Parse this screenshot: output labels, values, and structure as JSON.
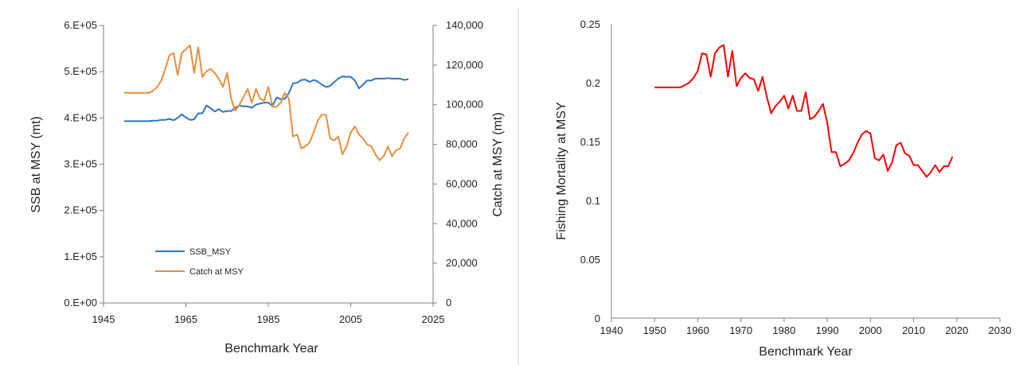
{
  "chart_data": [
    {
      "type": "line",
      "xlabel": "Benchmark Year",
      "ylabel": "SSB at MSY (mt)",
      "y2label": "Catch at MSY (mt)",
      "xlim": [
        1945,
        2025
      ],
      "ylim": [
        0,
        600000
      ],
      "y2lim": [
        0,
        140000
      ],
      "x_ticks": [
        "1945",
        "1965",
        "1985",
        "2005",
        "2025"
      ],
      "y_ticks": [
        "0.E+00",
        "1.E+05",
        "2.E+05",
        "3.E+05",
        "4.E+05",
        "5.E+05",
        "6.E+05"
      ],
      "y2_ticks": [
        "0",
        "20,000",
        "40,000",
        "60,000",
        "80,000",
        "100,000",
        "120,000",
        "140,000"
      ],
      "legend": "center-left",
      "series": [
        {
          "name": "SSB_MSY",
          "axis": "left",
          "color": "#2e75c3",
          "x": [
            1950,
            1951,
            1952,
            1953,
            1954,
            1955,
            1956,
            1957,
            1958,
            1959,
            1960,
            1961,
            1962,
            1963,
            1964,
            1965,
            1966,
            1967,
            1968,
            1969,
            1970,
            1971,
            1972,
            1973,
            1974,
            1975,
            1976,
            1977,
            1978,
            1979,
            1980,
            1981,
            1982,
            1983,
            1984,
            1985,
            1986,
            1987,
            1988,
            1989,
            1990,
            1991,
            1992,
            1993,
            1994,
            1995,
            1996,
            1997,
            1998,
            1999,
            2000,
            2001,
            2002,
            2003,
            2004,
            2005,
            2006,
            2007,
            2008,
            2009,
            2010,
            2011,
            2012,
            2013,
            2014,
            2015,
            2016,
            2017,
            2018,
            2019
          ],
          "values": [
            393000,
            393000,
            393000,
            393000,
            393000,
            393000,
            393000,
            394000,
            394000,
            396000,
            396000,
            398000,
            395000,
            400000,
            408000,
            401000,
            396000,
            397000,
            410000,
            410000,
            427000,
            421000,
            414000,
            419000,
            413000,
            415000,
            415000,
            422000,
            427000,
            425000,
            425000,
            422000,
            429000,
            431000,
            433000,
            433000,
            426000,
            444000,
            441000,
            441000,
            454000,
            475000,
            476000,
            482000,
            483000,
            478000,
            482000,
            479000,
            472000,
            467000,
            469000,
            478000,
            485000,
            490000,
            489000,
            489000,
            481000,
            464000,
            472000,
            481000,
            481000,
            485000,
            485000,
            485000,
            486000,
            485000,
            485000,
            485000,
            482000,
            484000
          ]
        },
        {
          "name": "Catch at MSY",
          "axis": "right",
          "color": "#ed8c3c",
          "x": [
            1950,
            1951,
            1952,
            1953,
            1954,
            1955,
            1956,
            1957,
            1958,
            1959,
            1960,
            1961,
            1962,
            1963,
            1964,
            1965,
            1966,
            1967,
            1968,
            1969,
            1970,
            1971,
            1972,
            1973,
            1974,
            1975,
            1976,
            1977,
            1978,
            1979,
            1980,
            1981,
            1982,
            1983,
            1984,
            1985,
            1986,
            1987,
            1988,
            1989,
            1990,
            1991,
            1992,
            1993,
            1994,
            1995,
            1996,
            1997,
            1998,
            1999,
            2000,
            2001,
            2002,
            2003,
            2004,
            2005,
            2006,
            2007,
            2008,
            2009,
            2010,
            2011,
            2012,
            2013,
            2014,
            2015,
            2016,
            2017,
            2018,
            2019
          ],
          "values": [
            106000,
            106000,
            106000,
            106000,
            106000,
            106000,
            106000,
            107000,
            109000,
            112000,
            118000,
            125000,
            126000,
            115000,
            126000,
            128000,
            130000,
            116000,
            129000,
            114000,
            117000,
            118000,
            116000,
            113000,
            109000,
            116000,
            103000,
            97000,
            100000,
            104000,
            108000,
            101000,
            108000,
            103000,
            102000,
            109000,
            99000,
            99000,
            101000,
            106000,
            103000,
            84000,
            85000,
            78000,
            79000,
            81000,
            86000,
            92000,
            95000,
            95000,
            83000,
            82000,
            84000,
            75000,
            79000,
            86000,
            89000,
            85000,
            83000,
            80000,
            79000,
            75000,
            72000,
            74000,
            79000,
            74000,
            77000,
            78000,
            83000,
            86000
          ]
        }
      ]
    },
    {
      "type": "line",
      "xlabel": "Benchmark Year",
      "ylabel": "Fishing Mortality at MSY",
      "xlim": [
        1940,
        2030
      ],
      "ylim": [
        0,
        0.25
      ],
      "x_ticks": [
        "1940",
        "1950",
        "1960",
        "1970",
        "1980",
        "1990",
        "2000",
        "2010",
        "2020",
        "2030"
      ],
      "y_ticks": [
        "0",
        "0.05",
        "0.1",
        "0.15",
        "0.2",
        "0.25"
      ],
      "series": [
        {
          "color": "#ff0000",
          "x": [
            1950,
            1951,
            1952,
            1953,
            1954,
            1955,
            1956,
            1957,
            1958,
            1959,
            1960,
            1961,
            1962,
            1963,
            1964,
            1965,
            1966,
            1967,
            1968,
            1969,
            1970,
            1971,
            1972,
            1973,
            1974,
            1975,
            1976,
            1977,
            1978,
            1979,
            1980,
            1981,
            1982,
            1983,
            1984,
            1985,
            1986,
            1987,
            1988,
            1989,
            1990,
            1991,
            1992,
            1993,
            1994,
            1995,
            1996,
            1997,
            1998,
            1999,
            2000,
            2001,
            2002,
            2003,
            2004,
            2005,
            2006,
            2007,
            2008,
            2009,
            2010,
            2011,
            2012,
            2013,
            2014,
            2015,
            2016,
            2017,
            2018,
            2019
          ],
          "values": [
            0.196,
            0.196,
            0.196,
            0.196,
            0.196,
            0.196,
            0.196,
            0.198,
            0.2,
            0.204,
            0.21,
            0.225,
            0.224,
            0.205,
            0.225,
            0.23,
            0.232,
            0.205,
            0.227,
            0.197,
            0.204,
            0.208,
            0.204,
            0.203,
            0.193,
            0.205,
            0.188,
            0.174,
            0.18,
            0.184,
            0.189,
            0.178,
            0.189,
            0.176,
            0.176,
            0.192,
            0.169,
            0.171,
            0.176,
            0.182,
            0.166,
            0.141,
            0.141,
            0.129,
            0.131,
            0.134,
            0.14,
            0.149,
            0.156,
            0.159,
            0.157,
            0.136,
            0.134,
            0.139,
            0.125,
            0.132,
            0.147,
            0.149,
            0.14,
            0.138,
            0.13,
            0.13,
            0.125,
            0.12,
            0.124,
            0.13,
            0.124,
            0.129,
            0.129,
            0.137
          ]
        }
      ]
    }
  ]
}
